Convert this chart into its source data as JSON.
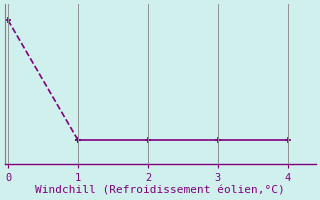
{
  "x": [
    0,
    1,
    2,
    3,
    4
  ],
  "y": [
    0.9,
    0.15,
    0.15,
    0.15,
    0.15
  ],
  "line_color": "#800080",
  "marker": "+",
  "marker_size": 5,
  "line_style_solid": "-",
  "line_style_dashed": "--",
  "line_width": 1.2,
  "background_color": "#cff0ec",
  "xlabel": "Windchill (Refroidissement éolien,°C)",
  "xlabel_color": "#800080",
  "xlabel_fontsize": 8,
  "xlim": [
    -0.05,
    4.4
  ],
  "ylim": [
    0.0,
    1.0
  ],
  "xticks": [
    0,
    1,
    2,
    3,
    4
  ],
  "grid_color": "#909090",
  "tick_color": "#800080",
  "tick_fontsize": 7.5,
  "axis_color": "#808080",
  "bottom_spine_color": "#800080"
}
